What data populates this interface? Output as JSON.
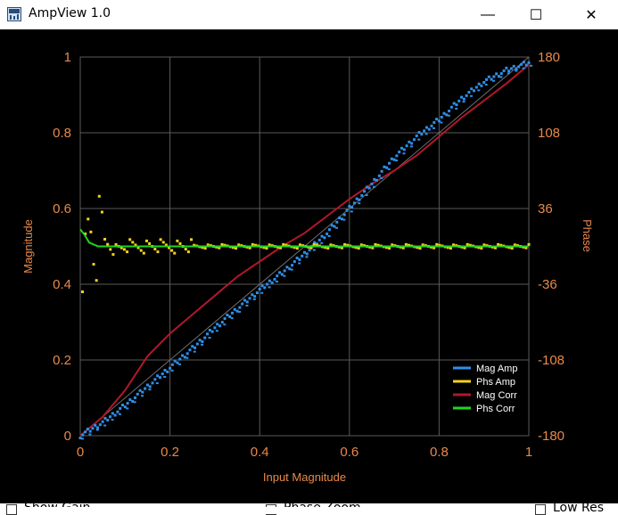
{
  "window": {
    "title": "AmpView 1.0",
    "minimize": "—",
    "maximize": "☐",
    "close": "✕"
  },
  "controls": {
    "show_gain": "Show Gain",
    "phase_zoom": "Phase Zoom",
    "low_res": "Low Res"
  },
  "chart_data": {
    "type": "scatter",
    "xlabel": "Input Magnitude",
    "ylabel": "Magnitude",
    "y2label": "Phase",
    "xlim": [
      0,
      1
    ],
    "ylim": [
      0,
      1
    ],
    "y2lim": [
      -180,
      180
    ],
    "x_ticks": [
      "0",
      "0.2",
      "0.4",
      "0.6",
      "0.8",
      "1"
    ],
    "y_ticks": [
      "0",
      "0.2",
      "0.4",
      "0.6",
      "0.8",
      "1"
    ],
    "y2_ticks": [
      "-180",
      "-108",
      "-36",
      "36",
      "108",
      "180"
    ],
    "grid": true,
    "legend_position": "bottom-right",
    "colors": {
      "background": "#000000",
      "grid": "#5a5a5a",
      "axis_text": "#e8894a",
      "mag_amp": "#2e8fe8",
      "phs_amp": "#f2d21e",
      "mag_corr": "#b0182a",
      "phs_corr": "#1ed61e",
      "reference": "#6e6e6e"
    },
    "series": [
      {
        "name": "Mag Amp",
        "style": "dots",
        "x": [
          0,
          0.05,
          0.1,
          0.15,
          0.2,
          0.25,
          0.3,
          0.35,
          0.4,
          0.45,
          0.5,
          0.55,
          0.6,
          0.65,
          0.7,
          0.75,
          0.8,
          0.85,
          0.9,
          0.95,
          1.0
        ],
        "y": [
          0,
          0.035,
          0.08,
          0.13,
          0.18,
          0.23,
          0.285,
          0.335,
          0.385,
          0.43,
          0.48,
          0.535,
          0.6,
          0.665,
          0.735,
          0.79,
          0.835,
          0.89,
          0.935,
          0.965,
          0.985
        ]
      },
      {
        "name": "Phs Amp",
        "style": "dots",
        "x": [
          0.01,
          0.02,
          0.03,
          0.05,
          0.08,
          0.1,
          0.15,
          0.2,
          0.3,
          0.4,
          0.5,
          0.6,
          0.7,
          0.8,
          0.9,
          1.0
        ],
        "y": [
          0.42,
          0.56,
          0.5,
          0.52,
          0.49,
          0.5,
          0.5,
          0.5,
          0.5,
          0.5,
          0.5,
          0.5,
          0.5,
          0.5,
          0.5,
          0.5
        ]
      },
      {
        "name": "Mag Corr",
        "style": "line",
        "x": [
          0,
          0.05,
          0.1,
          0.15,
          0.2,
          0.25,
          0.3,
          0.35,
          0.4,
          0.45,
          0.5,
          0.55,
          0.6,
          0.65,
          0.7,
          0.75,
          0.8,
          0.85,
          0.9,
          0.95,
          1.0
        ],
        "y": [
          0,
          0.05,
          0.12,
          0.21,
          0.27,
          0.32,
          0.37,
          0.42,
          0.46,
          0.5,
          0.535,
          0.58,
          0.625,
          0.665,
          0.7,
          0.74,
          0.79,
          0.84,
          0.885,
          0.93,
          0.98
        ]
      },
      {
        "name": "Phs Corr",
        "style": "line",
        "x": [
          0,
          0.01,
          0.02,
          0.04,
          0.06,
          0.1,
          0.2,
          0.4,
          0.6,
          0.8,
          1.0
        ],
        "y": [
          0.545,
          0.53,
          0.51,
          0.5,
          0.5,
          0.5,
          0.5,
          0.5,
          0.5,
          0.5,
          0.5
        ]
      }
    ]
  }
}
